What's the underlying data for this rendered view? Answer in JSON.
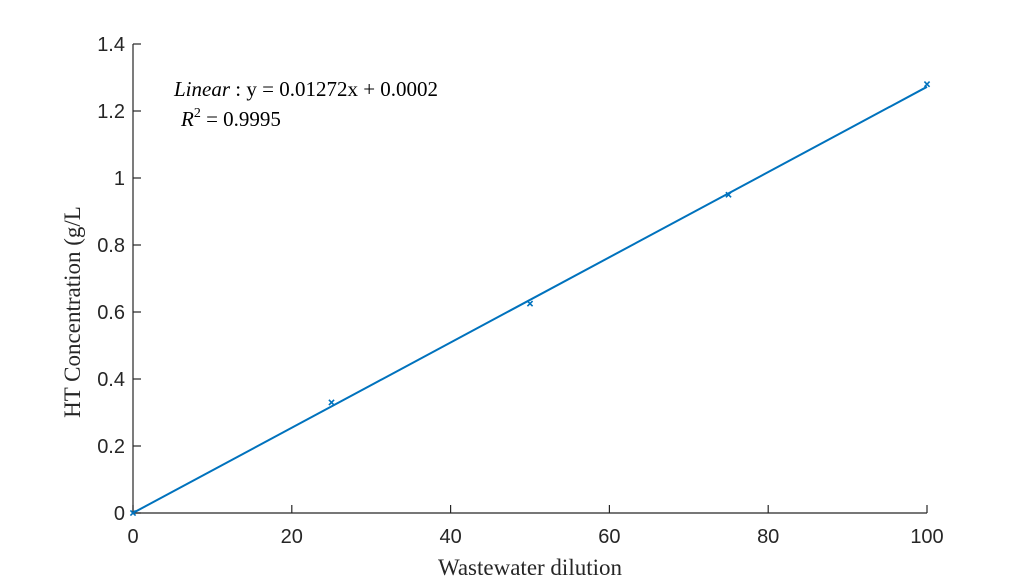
{
  "chart_data": {
    "type": "scatter",
    "xlabel": "Wastewater dilution",
    "ylabel": "HT Concentration (g/L",
    "xlim": [
      0,
      100
    ],
    "ylim": [
      0,
      1.4
    ],
    "xticks": [
      "0",
      "20",
      "40",
      "60",
      "80",
      "100"
    ],
    "yticks": [
      "0",
      "0.2",
      "0.4",
      "0.6",
      "0.8",
      "1",
      "1.2",
      "1.4"
    ],
    "grid": false,
    "series": [
      {
        "kind": "markers",
        "marker": "x",
        "x": [
          0,
          25,
          50,
          75,
          100
        ],
        "y": [
          0.0,
          0.33,
          0.625,
          0.95,
          1.28
        ]
      },
      {
        "kind": "fit-line",
        "slope": 0.01272,
        "intercept": 0.0002
      }
    ],
    "annotations": {
      "equation_prefix": "Linear",
      "equation_body": " : y = 0.01272x + 0.0002",
      "r2_label": "R",
      "r2_exponent": "2",
      "r2_value": " = 0.9995"
    },
    "colors": {
      "series": "#0072BD",
      "axis": "#262626"
    }
  }
}
